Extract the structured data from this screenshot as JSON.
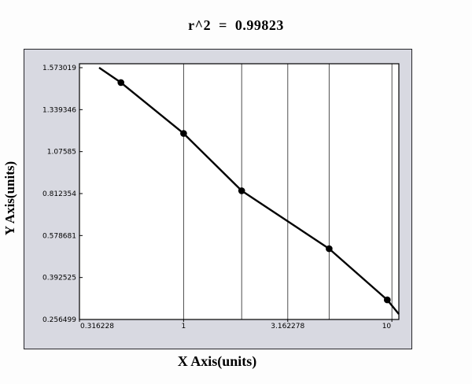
{
  "chart_data": {
    "type": "scatter",
    "title": "r^2  =  0.99823",
    "r_squared": 0.99823,
    "xlabel": "X Axis(units)",
    "ylabel": "Y Axis(units)",
    "x_scale": "log",
    "xlim": [
      0.316228,
      10.8
    ],
    "x_ticks": [
      0.316228,
      1,
      3.162278,
      10
    ],
    "x_tick_labels": [
      "0.316228",
      "1",
      "3.162278",
      "10"
    ],
    "y_ticks": [
      0.256499,
      0.392525,
      0.578681,
      0.812354,
      1.07585,
      1.339346,
      1.573019
    ],
    "y_tick_labels": [
      "0.256499",
      "0.392525",
      "0.578681",
      "0.812354",
      "1.07585",
      "1.339346",
      "1.573019"
    ],
    "grid": "vertical-only",
    "gridlines_x": [
      1,
      1.9,
      3.162278,
      5,
      10
    ],
    "points": [
      {
        "x": 0.5,
        "y": 1.49
      },
      {
        "x": 1.0,
        "y": 1.19
      },
      {
        "x": 1.9,
        "y": 0.83
      },
      {
        "x": 5.0,
        "y": 0.52
      },
      {
        "x": 9.5,
        "y": 0.32
      }
    ],
    "fit_curve": [
      {
        "x": 0.393,
        "y": 1.573
      },
      {
        "x": 0.5,
        "y": 1.49
      },
      {
        "x": 1.0,
        "y": 1.19
      },
      {
        "x": 1.9,
        "y": 0.83
      },
      {
        "x": 5.0,
        "y": 0.52
      },
      {
        "x": 9.5,
        "y": 0.32
      },
      {
        "x": 10.8,
        "y": 0.274
      }
    ],
    "colors": {
      "frame_background": "#d8d9e1",
      "plot_background": "#ffffff",
      "line": "#000000",
      "points": "#000000",
      "gridlines": "#3c3c3c",
      "text": "#000000"
    }
  }
}
